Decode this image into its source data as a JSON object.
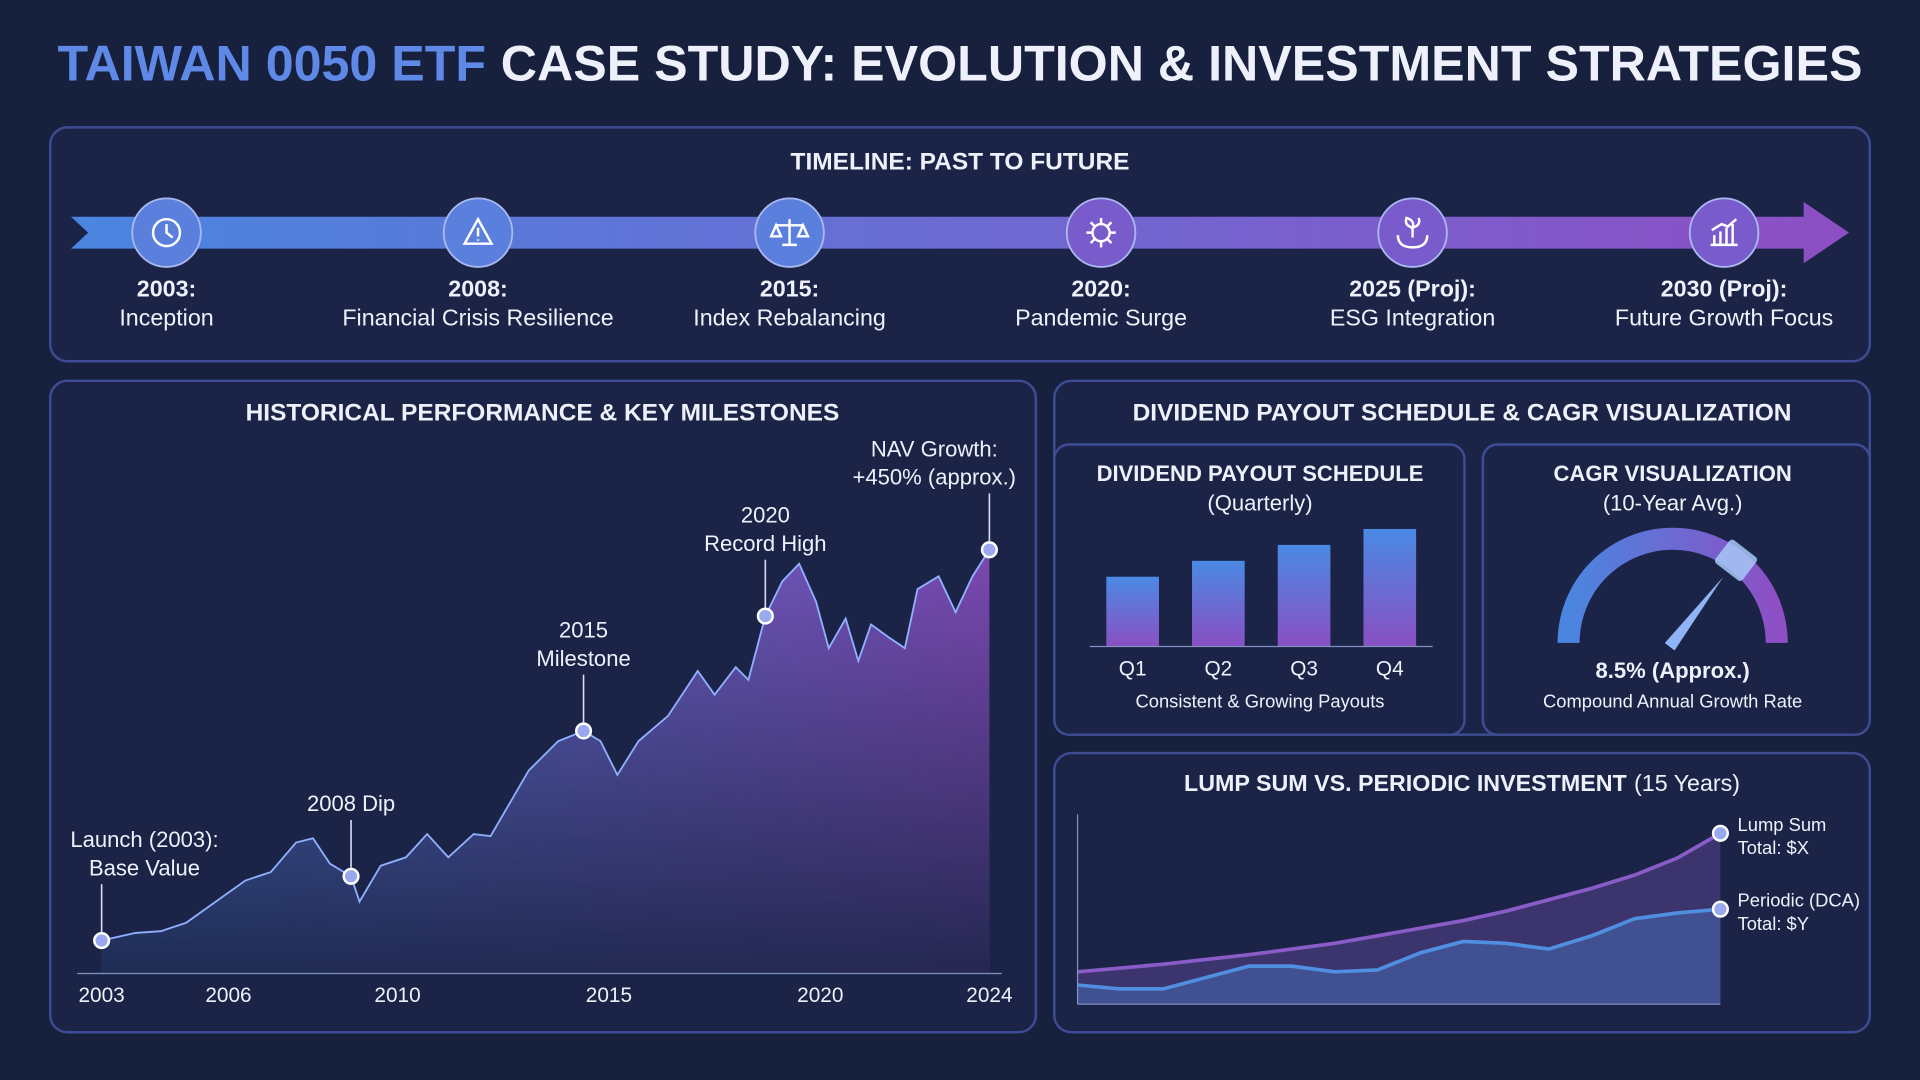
{
  "title_highlight": "TAIWAN 0050 ETF",
  "title": "CASE STUDY: EVOLUTION & INVESTMENT STRATEGIES",
  "timeline": {
    "title": "TIMELINE: PAST TO FUTURE",
    "events": [
      {
        "date": "2003:",
        "label": "Inception"
      },
      {
        "date": "2008:",
        "label": "Financial Crisis Resilience"
      },
      {
        "date": "2015:",
        "label": "Index Rebalancing"
      },
      {
        "date": "2020:",
        "label": "Pandemic Surge"
      },
      {
        "date": "2025 (Proj):",
        "label": "ESG Integration"
      },
      {
        "date": "2030 (Proj):",
        "label": "Future Growth Focus"
      }
    ]
  },
  "group_title": "DIVIDEND PAYOUT SCHEDULE & CAGR VISUALIZATION",
  "chart_data": [
    {
      "type": "area",
      "title": "HISTORICAL PERFORMANCE & KEY MILESTONES",
      "x": [
        2003.0,
        2003.8,
        2004.4,
        2005.0,
        2005.7,
        2006.4,
        2007.0,
        2007.6,
        2008.0,
        2008.4,
        2008.9,
        2009.1,
        2009.6,
        2010.2,
        2010.7,
        2011.2,
        2011.8,
        2012.2,
        2013.1,
        2013.8,
        2014.4,
        2014.8,
        2015.2,
        2015.7,
        2016.4,
        2017.1,
        2017.5,
        2018.0,
        2018.3,
        2018.7,
        2019.1,
        2019.5,
        2019.9,
        2020.2,
        2020.6,
        2020.9,
        2021.2,
        2021.6,
        2022.0,
        2022.3,
        2022.8,
        2023.2,
        2023.6,
        2024.0
      ],
      "values": [
        7.8,
        9.6,
        10,
        12,
        17,
        22,
        24,
        31,
        32,
        26,
        23,
        17,
        25.5,
        27.5,
        33,
        27.5,
        33,
        32.5,
        48,
        55,
        57.4,
        55,
        47,
        55,
        61,
        71.6,
        66,
        72.5,
        69.5,
        84.6,
        92.8,
        97,
        88,
        77,
        84,
        74,
        82.6,
        79.7,
        77,
        91,
        94,
        85.5,
        94,
        100.3
      ],
      "xlim": [
        2003,
        2024
      ],
      "ylim": [
        0,
        100
      ],
      "xticks": [
        2003,
        2006,
        2010,
        2015,
        2020,
        2024
      ],
      "annotations": [
        {
          "x": 2003.0,
          "label": [
            "Launch (2003):",
            "Base Value"
          ]
        },
        {
          "x": 2008.9,
          "label": [
            "2008 Dip"
          ]
        },
        {
          "x": 2014.4,
          "label": [
            "2015",
            "Milestone"
          ]
        },
        {
          "x": 2018.7,
          "label": [
            "2020",
            "Record High"
          ]
        },
        {
          "x": 2024.0,
          "label": [
            "NAV Growth:",
            "+450% (approx.)"
          ]
        }
      ]
    },
    {
      "type": "bar",
      "title": "DIVIDEND PAYOUT SCHEDULE",
      "subtitle": "(Quarterly)",
      "categories": [
        "Q1",
        "Q2",
        "Q3",
        "Q4"
      ],
      "values": [
        57,
        70,
        83,
        96
      ],
      "ylim": [
        0,
        100
      ],
      "note": "Consistent & Growing Payouts"
    },
    {
      "type": "gauge",
      "title": "CAGR VISUALIZATION",
      "subtitle": "(10-Year Avg.)",
      "values": [
        8.5
      ],
      "value_labels": [
        "8.5% (Approx.)"
      ],
      "ylim": [
        0,
        12
      ],
      "note": "Compound Annual Growth Rate"
    },
    {
      "type": "line",
      "title": "LUMP SUM VS. PERIODIC INVESTMENT",
      "subtitle": "(15 Years)",
      "x": [
        0,
        1,
        2,
        3,
        4,
        5,
        6,
        7,
        8,
        9,
        10,
        11,
        12,
        13,
        14,
        15
      ],
      "xlim": [
        0,
        15
      ],
      "ylim": [
        0,
        100
      ],
      "series": [
        {
          "name": [
            "Lump Sum",
            "Total: $X"
          ],
          "color": "#8a5cc8",
          "values": [
            17,
            19,
            21,
            23.5,
            26,
            29,
            32,
            36,
            40,
            44,
            49,
            55,
            61,
            68,
            77,
            90
          ]
        },
        {
          "name": [
            "Periodic (DCA)",
            "Total: $Y"
          ],
          "color": "#4f8ee0",
          "values": [
            10,
            8,
            8,
            14,
            20,
            20,
            17,
            18,
            27,
            33,
            32,
            29,
            36,
            45,
            48,
            50
          ]
        }
      ]
    }
  ]
}
